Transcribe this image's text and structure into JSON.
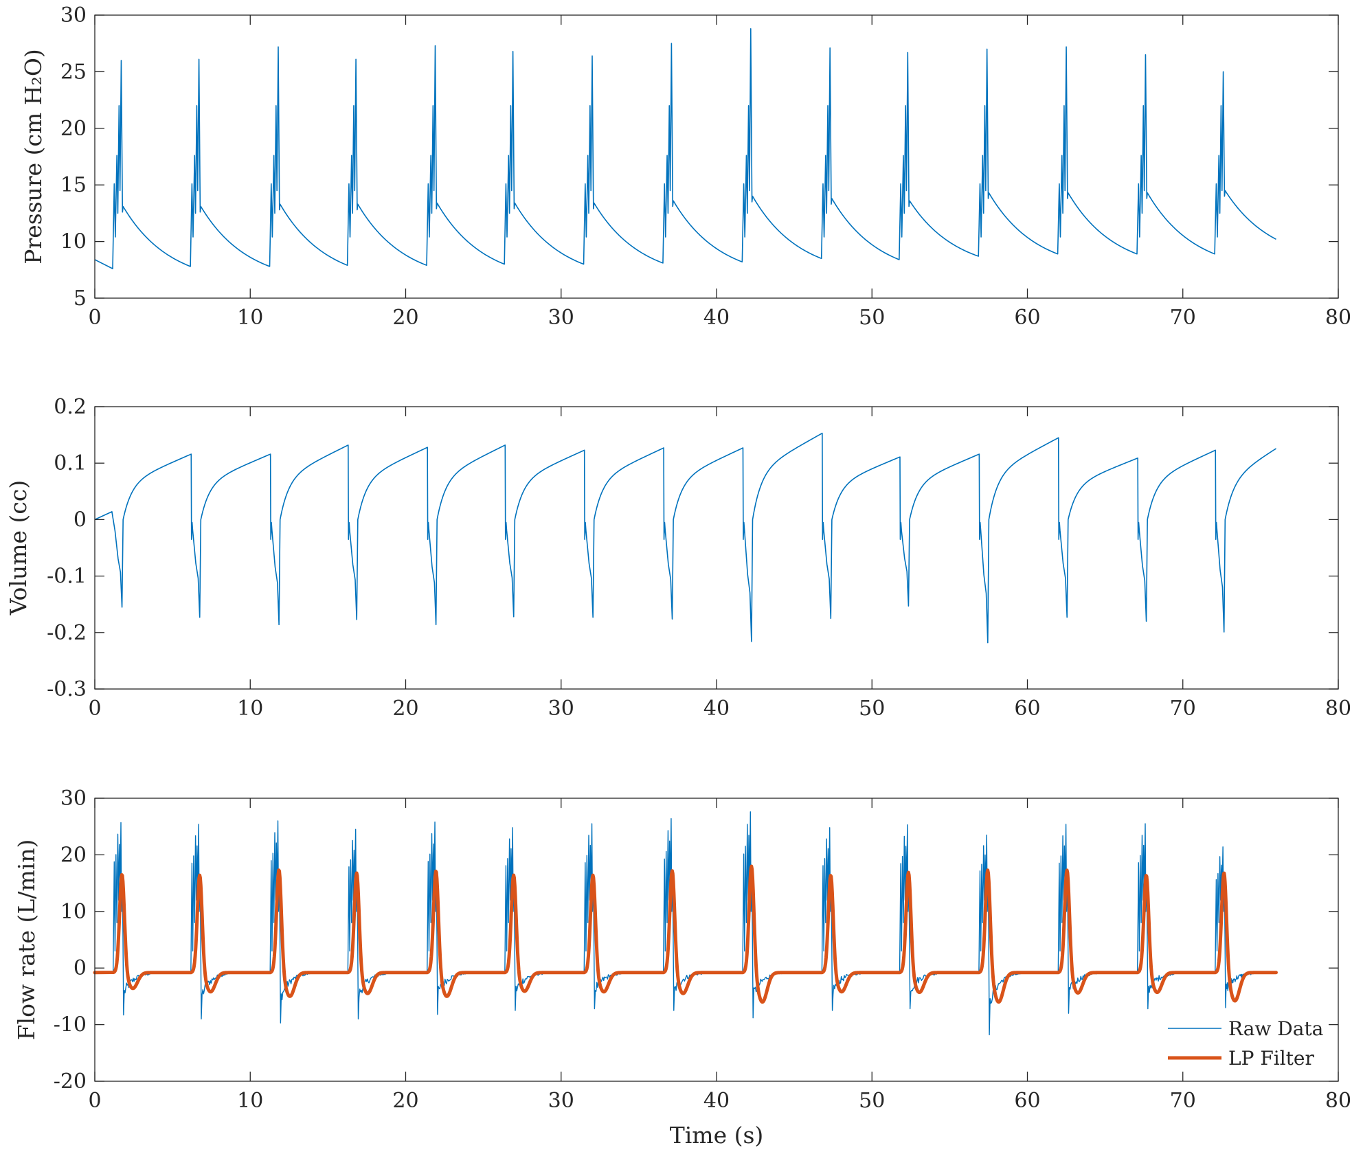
{
  "chart_data": [
    {
      "type": "line",
      "name": "pressure",
      "xlabel": "",
      "ylabel": "Pressure (cm H₂O)",
      "xlim": [
        0,
        80
      ],
      "ylim": [
        5,
        30
      ],
      "xticks": [
        "0",
        "10",
        "20",
        "30",
        "40",
        "50",
        "60",
        "70",
        "80"
      ],
      "yticks": [
        "5",
        "10",
        "15",
        "20",
        "25",
        "30"
      ],
      "grid": false,
      "colors": {
        "raw": "#0072BD"
      },
      "cycles": {
        "onset": [
          1.2,
          6.2,
          11.3,
          16.3,
          21.4,
          26.4,
          31.5,
          36.6,
          41.7,
          46.8,
          51.8,
          56.9,
          62.0,
          67.1,
          72.1
        ],
        "peak": [
          26.0,
          26.1,
          27.2,
          26.1,
          27.3,
          26.8,
          26.4,
          27.5,
          28.8,
          27.1,
          26.7,
          27.0,
          27.2,
          26.5,
          25.0
        ],
        "start_level": [
          7.6,
          7.8,
          7.8,
          7.9,
          7.9,
          8.0,
          8.0,
          8.1,
          8.2,
          8.5,
          8.4,
          8.7,
          8.9,
          8.9,
          8.9
        ],
        "post_peak": [
          13.1,
          13.1,
          13.3,
          13.3,
          13.4,
          13.4,
          13.4,
          13.6,
          14.0,
          13.8,
          13.6,
          14.3,
          14.3,
          14.3,
          14.5
        ]
      },
      "initial_value": 8.4,
      "final_value": 10.2,
      "x_end": 76
    },
    {
      "type": "line",
      "name": "volume",
      "xlabel": "",
      "ylabel": "Volume (cc)",
      "xlim": [
        0,
        80
      ],
      "ylim": [
        -0.3,
        0.2
      ],
      "xticks": [
        "0",
        "10",
        "20",
        "30",
        "40",
        "50",
        "60",
        "70",
        "80"
      ],
      "yticks": [
        "-0.3",
        "-0.2",
        "-0.1",
        "0",
        "0.1",
        "0.2"
      ],
      "grid": false,
      "colors": {
        "raw": "#0072BD"
      },
      "cycles": {
        "onset": [
          1.2,
          6.2,
          11.3,
          16.3,
          21.4,
          26.4,
          31.5,
          36.6,
          41.7,
          46.8,
          51.8,
          56.9,
          62.0,
          67.1,
          72.1
        ],
        "min": [
          -0.155,
          -0.173,
          -0.186,
          -0.177,
          -0.186,
          -0.172,
          -0.173,
          -0.176,
          -0.216,
          -0.175,
          -0.153,
          -0.218,
          -0.173,
          -0.18,
          -0.199
        ],
        "max_before_next": [
          0.116,
          0.116,
          0.132,
          0.128,
          0.132,
          0.123,
          0.127,
          0.127,
          0.153,
          0.111,
          0.116,
          0.145,
          0.109,
          0.123,
          0.126
        ]
      },
      "initial_value": 0.0,
      "x_end": 76
    },
    {
      "type": "line",
      "name": "flow",
      "xlabel": "Time (s)",
      "ylabel": "Flow rate (L/min)",
      "xlim": [
        0,
        80
      ],
      "ylim": [
        -20,
        30
      ],
      "xticks": [
        "0",
        "10",
        "20",
        "30",
        "40",
        "50",
        "60",
        "70",
        "80"
      ],
      "yticks": [
        "-20",
        "-10",
        "0",
        "10",
        "20",
        "30"
      ],
      "grid": false,
      "legend": {
        "location": "bottom-right",
        "entries": [
          "Raw Data",
          "LP Filter"
        ]
      },
      "series": [
        {
          "name": "Raw Data",
          "color": "#0072BD",
          "width": "thin"
        },
        {
          "name": "LP Filter",
          "color": "#D95319",
          "width": "thick"
        }
      ],
      "baseline": -0.8,
      "cycles": {
        "onset": [
          1.2,
          6.2,
          11.3,
          16.3,
          21.4,
          26.4,
          31.5,
          36.6,
          41.7,
          46.8,
          51.8,
          56.9,
          62.0,
          67.1,
          72.1
        ],
        "raw_peak": [
          25.7,
          25.4,
          26.0,
          24.5,
          25.8,
          24.8,
          25.5,
          26.4,
          27.6,
          24.8,
          25.3,
          23.5,
          25.4,
          25.5,
          21.4
        ],
        "raw_min": [
          -8.3,
          -9.0,
          -9.7,
          -9.0,
          -8.2,
          -7.5,
          -7.2,
          -7.5,
          -8.8,
          -7.5,
          -7.2,
          -11.8,
          -8.0,
          -7.2,
          -7.0
        ],
        "lp_peak": [
          16.7,
          16.6,
          17.6,
          17.0,
          17.4,
          16.6,
          16.6,
          17.4,
          18.3,
          16.6,
          17.1,
          17.6,
          17.5,
          16.6,
          17.1
        ],
        "lp_min": [
          -3.6,
          -4.2,
          -5.0,
          -4.5,
          -5.0,
          -4.1,
          -4.2,
          -4.5,
          -6.0,
          -4.2,
          -4.3,
          -6.0,
          -4.4,
          -4.3,
          -5.8
        ]
      },
      "x_end": 76
    }
  ]
}
